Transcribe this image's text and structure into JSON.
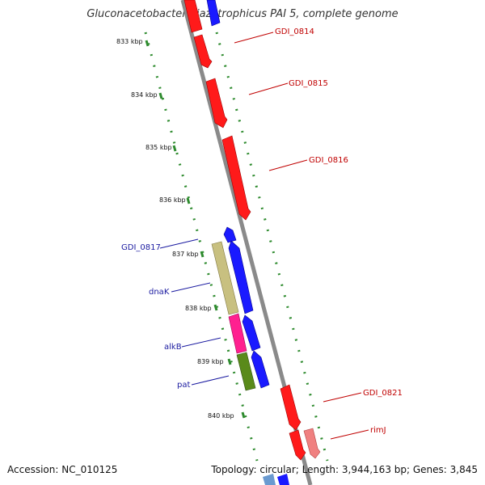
{
  "title": "Gluconacetobacter diazotrophicus PAI 5, complete genome",
  "accession": "Accession: NC_010125",
  "topology": "Topology: circular; Length: 3,944,163 bp; Genes: 3,845",
  "colors": {
    "backbone": "#8a8a8a",
    "tick_dots": "#2e8b2e",
    "forward_label": "#c00000",
    "reverse_label": "#1a1aa0",
    "red": "#ff1a1a",
    "blue": "#1a1aff",
    "pink_light": "#f08080",
    "olive": "#c8c080",
    "magenta": "#ff2090",
    "dark_green": "#5a8a1a"
  },
  "kbp_labels": [
    "833 kbp",
    "834 kbp",
    "835 kbp",
    "836 kbp",
    "837 kbp",
    "838 kbp",
    "839 kbp",
    "840 kbp"
  ],
  "gene_labels": [
    {
      "name": "GDI_0814",
      "strand": "forward"
    },
    {
      "name": "GDI_0815",
      "strand": "forward"
    },
    {
      "name": "GDI_0816",
      "strand": "forward"
    },
    {
      "name": "GDI_0817",
      "strand": "reverse"
    },
    {
      "name": "dnaK",
      "strand": "reverse"
    },
    {
      "name": "alkB",
      "strand": "reverse"
    },
    {
      "name": "pat",
      "strand": "reverse"
    },
    {
      "name": "GDI_0821",
      "strand": "forward"
    },
    {
      "name": "rimJ",
      "strand": "forward"
    }
  ]
}
